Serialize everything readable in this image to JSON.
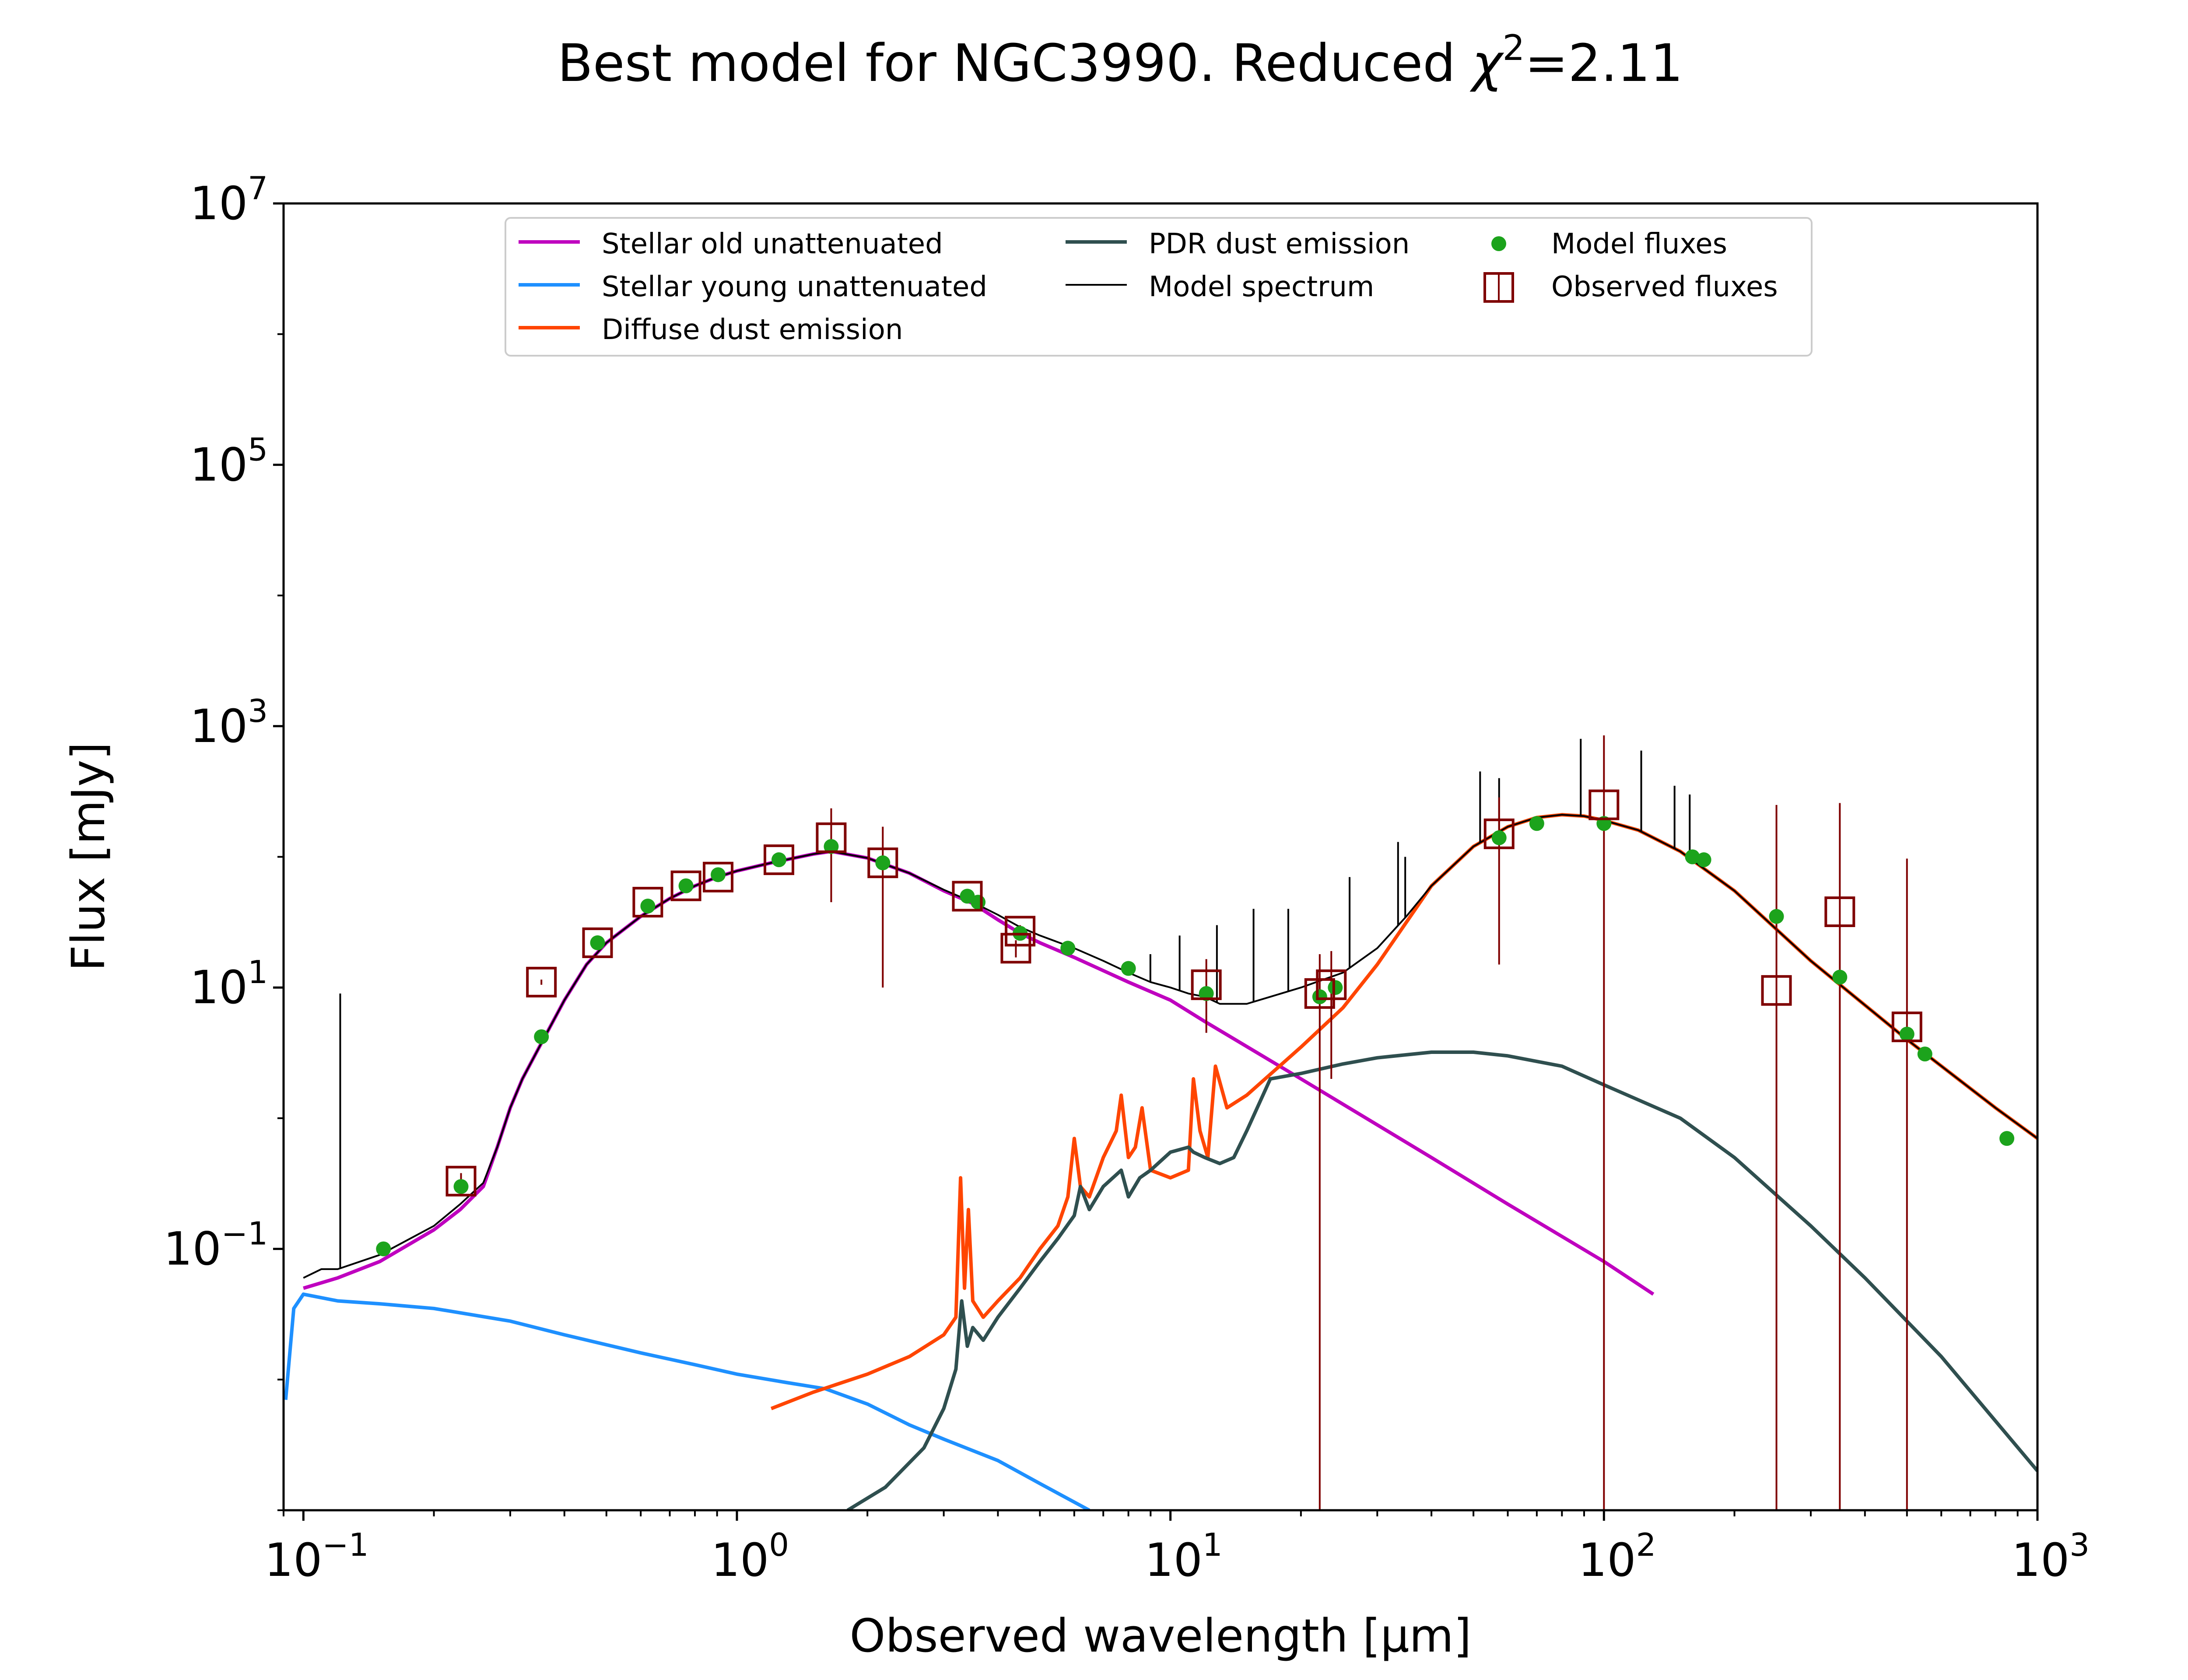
{
  "chart_data": {
    "type": "line",
    "title": "Best model for NGC3990. Reduced χ²=2.11",
    "title_main": "Best model for NGC3990. Reduced ",
    "title_chi": "χ",
    "title_sup": "2",
    "title_value": "=2.11",
    "xlabel": "Observed wavelength [μm]",
    "ylabel": "Flux [mJy]",
    "xscale": "log",
    "yscale": "log",
    "xlim": [
      0.09,
      1000
    ],
    "ylim": [
      0.001,
      10000000
    ],
    "x_ticks": [
      {
        "value": 0.1,
        "base": "10",
        "exp": "−1"
      },
      {
        "value": 1,
        "base": "10",
        "exp": "0"
      },
      {
        "value": 10,
        "base": "10",
        "exp": "1"
      },
      {
        "value": 100,
        "base": "10",
        "exp": "2"
      },
      {
        "value": 1000,
        "base": "10",
        "exp": "3"
      }
    ],
    "y_ticks": [
      {
        "value": 0.1,
        "base": "10",
        "exp": "−1"
      },
      {
        "value": 10,
        "base": "10",
        "exp": "1"
      },
      {
        "value": 1000,
        "base": "10",
        "exp": "3"
      },
      {
        "value": 100000,
        "base": "10",
        "exp": "5"
      },
      {
        "value": 10000000,
        "base": "10",
        "exp": "7"
      }
    ],
    "legend_position": "top-center",
    "legend": [
      {
        "label": "Stellar old unattenuated",
        "kind": "line",
        "color": "#bf00bf"
      },
      {
        "label": "Stellar young unattenuated",
        "kind": "line",
        "color": "#1e90ff"
      },
      {
        "label": "Diffuse dust emission",
        "kind": "line",
        "color": "#ff4500"
      },
      {
        "label": "PDR dust emission",
        "kind": "line",
        "color": "#2f4f4f"
      },
      {
        "label": "Model spectrum",
        "kind": "thinline",
        "color": "#000000"
      },
      {
        "label": "Model fluxes",
        "kind": "dot",
        "color": "#1ca31c"
      },
      {
        "label": "Observed fluxes",
        "kind": "square",
        "color": "#7f0000"
      }
    ],
    "series": [
      {
        "name": "Stellar old unattenuated",
        "color": "#bf00bf",
        "style": "line",
        "x": [
          0.1,
          0.12,
          0.15,
          0.2,
          0.23,
          0.26,
          0.28,
          0.3,
          0.32,
          0.35,
          0.4,
          0.45,
          0.5,
          0.6,
          0.7,
          0.8,
          0.9,
          1.0,
          1.2,
          1.5,
          1.65,
          2.0,
          2.5,
          3.0,
          3.5,
          4.0,
          4.5,
          5.0,
          6.0,
          8.0,
          10,
          12,
          20,
          40,
          60,
          100,
          130
        ],
        "y": [
          0.05,
          0.06,
          0.08,
          0.14,
          0.2,
          0.3,
          0.6,
          1.2,
          2.0,
          3.5,
          8,
          15,
          22,
          35,
          48,
          60,
          70,
          78,
          90,
          105,
          110,
          98,
          75,
          55,
          44,
          33,
          26,
          22,
          17,
          11,
          8,
          5.5,
          2.0,
          0.5,
          0.22,
          0.08,
          0.045
        ]
      },
      {
        "name": "Stellar young unattenuated",
        "color": "#1e90ff",
        "style": "line",
        "x": [
          0.091,
          0.095,
          0.1,
          0.12,
          0.15,
          0.2,
          0.3,
          0.4,
          0.6,
          0.8,
          1.0,
          1.3,
          1.6,
          2.0,
          2.5,
          3.0,
          4.0,
          5.0,
          6.5
        ],
        "y": [
          0.007,
          0.035,
          0.045,
          0.04,
          0.038,
          0.035,
          0.028,
          0.022,
          0.016,
          0.013,
          0.011,
          0.0095,
          0.0085,
          0.0065,
          0.0045,
          0.0035,
          0.0024,
          0.0016,
          0.001
        ]
      },
      {
        "name": "Diffuse dust emission",
        "color": "#ff4500",
        "style": "line",
        "x": [
          1.2,
          1.5,
          2.0,
          2.5,
          3.0,
          3.2,
          3.28,
          3.35,
          3.42,
          3.5,
          3.7,
          4.0,
          4.5,
          5.0,
          5.5,
          5.8,
          6.0,
          6.2,
          6.5,
          7.0,
          7.5,
          7.7,
          8.0,
          8.3,
          8.6,
          9.0,
          10,
          11,
          11.3,
          11.7,
          12.2,
          12.7,
          13.5,
          15,
          20,
          25,
          30,
          40,
          50,
          60,
          70,
          80,
          90,
          100,
          120,
          150,
          200,
          300,
          500,
          800,
          1000
        ],
        "y": [
          0.006,
          0.008,
          0.011,
          0.015,
          0.022,
          0.03,
          0.35,
          0.05,
          0.2,
          0.04,
          0.03,
          0.04,
          0.06,
          0.1,
          0.15,
          0.25,
          0.7,
          0.3,
          0.25,
          0.5,
          0.8,
          1.5,
          0.5,
          0.6,
          1.2,
          0.4,
          0.35,
          0.4,
          2.0,
          0.8,
          0.5,
          2.5,
          1.2,
          1.5,
          3.5,
          7,
          15,
          60,
          120,
          170,
          200,
          210,
          205,
          190,
          160,
          110,
          55,
          16,
          4,
          1.2,
          0.7
        ]
      },
      {
        "name": "PDR dust emission",
        "color": "#2f4f4f",
        "style": "line",
        "x": [
          1.8,
          2.2,
          2.7,
          3.0,
          3.2,
          3.3,
          3.4,
          3.5,
          3.7,
          4.0,
          4.5,
          5.0,
          5.5,
          6.0,
          6.2,
          6.5,
          7.0,
          7.7,
          8.0,
          8.5,
          9.0,
          10,
          11,
          11.3,
          12,
          13,
          14,
          15,
          17,
          20,
          25,
          30,
          40,
          50,
          60,
          80,
          100,
          150,
          200,
          300,
          400,
          600,
          1000
        ],
        "y": [
          0.001,
          0.0015,
          0.003,
          0.006,
          0.012,
          0.04,
          0.018,
          0.025,
          0.02,
          0.03,
          0.05,
          0.08,
          0.12,
          0.18,
          0.3,
          0.2,
          0.3,
          0.4,
          0.25,
          0.35,
          0.4,
          0.55,
          0.6,
          0.55,
          0.5,
          0.45,
          0.5,
          0.8,
          2.0,
          2.2,
          2.6,
          2.9,
          3.2,
          3.2,
          3.0,
          2.5,
          1.8,
          1.0,
          0.5,
          0.15,
          0.06,
          0.015,
          0.002
        ]
      },
      {
        "name": "Model spectrum",
        "color": "#000000",
        "style": "thin",
        "x": [
          0.1,
          0.11,
          0.12,
          0.15,
          0.2,
          0.23,
          0.26,
          0.28,
          0.3,
          0.32,
          0.35,
          0.4,
          0.45,
          0.5,
          0.6,
          0.7,
          0.8,
          0.9,
          1.0,
          1.2,
          1.5,
          1.65,
          2.0,
          2.5,
          3.0,
          3.5,
          4.0,
          4.5,
          5.0,
          6.0,
          7.0,
          8.0,
          9.0,
          10,
          11,
          12,
          13,
          15,
          17,
          20,
          25,
          30,
          35,
          40,
          50,
          60,
          70,
          80,
          90,
          100,
          120,
          150,
          200,
          300,
          500,
          800,
          1000
        ],
        "y": [
          0.06,
          0.07,
          0.07,
          0.09,
          0.15,
          0.22,
          0.32,
          0.6,
          1.2,
          2.0,
          3.5,
          8,
          15,
          22,
          35,
          48,
          60,
          70,
          78,
          90,
          105,
          110,
          98,
          75,
          56,
          45,
          36,
          29,
          25,
          20,
          16,
          13,
          11,
          10,
          9,
          8.5,
          7.5,
          7.5,
          8.5,
          10,
          13,
          20,
          35,
          60,
          120,
          170,
          200,
          210,
          205,
          190,
          160,
          110,
          55,
          16,
          4,
          1.2,
          0.7
        ]
      }
    ],
    "spectral_lines": [
      {
        "x": 0.1216,
        "y": 9
      },
      {
        "x": 8.99,
        "y": 18
      },
      {
        "x": 10.5,
        "y": 25
      },
      {
        "x": 12.8,
        "y": 30
      },
      {
        "x": 15.55,
        "y": 40
      },
      {
        "x": 18.7,
        "y": 40
      },
      {
        "x": 25.9,
        "y": 70
      },
      {
        "x": 33.5,
        "y": 130
      },
      {
        "x": 34.8,
        "y": 100
      },
      {
        "x": 51.8,
        "y": 450
      },
      {
        "x": 57.3,
        "y": 400
      },
      {
        "x": 88.4,
        "y": 800
      },
      {
        "x": 121.9,
        "y": 650
      },
      {
        "x": 145.5,
        "y": 350
      },
      {
        "x": 157.7,
        "y": 300
      }
    ],
    "model_fluxes": {
      "x": [
        0.153,
        0.231,
        0.354,
        0.477,
        0.623,
        0.763,
        0.905,
        1.25,
        1.65,
        2.17,
        3.4,
        3.6,
        4.5,
        5.8,
        8.0,
        12.1,
        22.1,
        24.0,
        57.3,
        70,
        100,
        160,
        170,
        250,
        350,
        500,
        550,
        850
      ],
      "y": [
        0.1,
        0.3,
        4.2,
        22,
        42,
        60,
        73,
        95,
        120,
        90,
        50,
        45,
        26,
        20,
        14,
        9,
        8.5,
        10,
        140,
        180,
        180,
        100,
        95,
        35,
        12,
        4.4,
        3.1,
        0.7
      ]
    },
    "observed_fluxes": {
      "x": [
        0.231,
        0.354,
        0.477,
        0.623,
        0.763,
        0.905,
        1.25,
        1.65,
        2.17,
        3.4,
        4.4,
        4.5,
        12.1,
        22.1,
        23.5,
        57.3,
        100,
        250,
        350,
        500
      ],
      "y": [
        0.33,
        11,
        22,
        45,
        60,
        70,
        95,
        140,
        90,
        50,
        20,
        27,
        10.5,
        9,
        10.5,
        150,
        250,
        9.5,
        38,
        5
      ],
      "err": [
        0.05,
        0.5,
        2,
        2,
        3,
        3,
        5,
        95,
        80,
        5,
        3,
        3,
        6,
        8.999,
        8.5,
        135,
        600,
        240,
        220,
        92
      ]
    }
  }
}
